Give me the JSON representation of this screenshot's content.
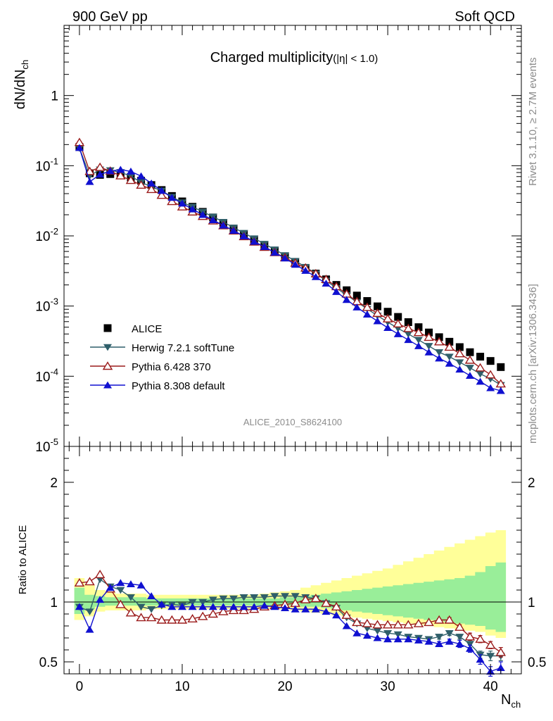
{
  "header": {
    "left": "900 GeV pp",
    "right": "Soft QCD"
  },
  "side_labels": {
    "rivet": "Rivet 3.1.10, ≥ 2.7M events",
    "mcplots": "mcplots.cern.ch [arXiv:1306.3436]"
  },
  "watermark": "ALICE_2010_S8624100",
  "chart_data": [
    {
      "type": "scatter",
      "title": "Charged multiplicity",
      "title_suffix": "(|η| < 1.0)",
      "ylabel": "dN/dN",
      "ylabel_sub": "ch",
      "yscale": "log",
      "xlim": [
        -1.5,
        43
      ],
      "ylim": [
        1e-05,
        10
      ],
      "x": [
        0,
        1,
        2,
        3,
        4,
        5,
        6,
        7,
        8,
        9,
        10,
        11,
        12,
        13,
        14,
        15,
        16,
        17,
        18,
        19,
        20,
        21,
        22,
        23,
        24,
        25,
        26,
        27,
        28,
        29,
        30,
        31,
        32,
        33,
        34,
        35,
        36,
        37,
        38,
        39,
        40,
        41
      ],
      "series": [
        {
          "name": "ALICE",
          "color": "#000000",
          "marker": "square",
          "values": [
            0.185,
            0.078,
            0.074,
            0.076,
            0.073,
            0.068,
            0.061,
            0.053,
            0.045,
            0.037,
            0.031,
            0.026,
            0.022,
            0.0183,
            0.0153,
            0.0127,
            0.0106,
            0.0088,
            0.0073,
            0.0061,
            0.0051,
            0.0042,
            0.0035,
            0.0029,
            0.0024,
            0.002,
            0.00168,
            0.00141,
            0.00118,
            0.00099,
            0.00083,
            0.0007,
            0.00059,
            0.0005,
            0.00042,
            0.00036,
            0.00031,
            0.00026,
            0.00022,
            0.00019,
            0.000165,
            0.000135
          ]
        },
        {
          "name": "Herwig 7.2.1 softTune",
          "color": "#2f5f6a",
          "marker": "triangle-down",
          "values": [
            0.178,
            0.072,
            0.088,
            0.086,
            0.081,
            0.071,
            0.058,
            0.05,
            0.044,
            0.036,
            0.03,
            0.026,
            0.022,
            0.0188,
            0.0158,
            0.0131,
            0.011,
            0.0092,
            0.0077,
            0.0064,
            0.0053,
            0.0044,
            0.0036,
            0.0029,
            0.0023,
            0.0018,
            0.00143,
            0.00114,
            0.00091,
            0.00073,
            0.00059,
            0.00048,
            0.0004,
            0.00033,
            0.00027,
            0.00022,
            0.00019,
            0.000158,
            0.000132,
            0.000108,
            9.2e-05,
            7.5e-05
          ]
        },
        {
          "name": "Pythia 6.428 370",
          "color": "#9b1b1b",
          "marker": "triangle-up-open",
          "values": [
            0.215,
            0.083,
            0.095,
            0.084,
            0.072,
            0.062,
            0.053,
            0.046,
            0.038,
            0.031,
            0.026,
            0.022,
            0.019,
            0.0164,
            0.014,
            0.0118,
            0.0098,
            0.0082,
            0.0069,
            0.0058,
            0.0049,
            0.0041,
            0.0035,
            0.0029,
            0.0024,
            0.0019,
            0.00149,
            0.00116,
            0.00096,
            0.00079,
            0.00066,
            0.00056,
            0.00048,
            0.00042,
            0.00036,
            0.00031,
            0.00026,
            0.00021,
            0.00017,
            0.000132,
            0.000105,
            7.8e-05
          ]
        },
        {
          "name": "Pythia 8.308 default",
          "color": "#1010d0",
          "marker": "triangle-up",
          "values": [
            0.18,
            0.059,
            0.075,
            0.084,
            0.088,
            0.083,
            0.071,
            0.056,
            0.044,
            0.035,
            0.029,
            0.024,
            0.02,
            0.0168,
            0.0141,
            0.0119,
            0.0099,
            0.0083,
            0.007,
            0.0058,
            0.0048,
            0.0039,
            0.0032,
            0.0026,
            0.0021,
            0.0016,
            0.00123,
            0.00096,
            0.00076,
            0.00061,
            0.00049,
            0.0004,
            0.00033,
            0.00027,
            0.00022,
            0.00018,
            0.000152,
            0.000125,
            0.000102,
            8.4e-05,
            6.8e-05,
            6.2e-05
          ]
        }
      ]
    },
    {
      "type": "line",
      "ylabel": "Ratio to ALICE",
      "xlabel": "N",
      "xlabel_sub": "ch",
      "xlim": [
        -1.5,
        43
      ],
      "ylim": [
        0.4,
        2.3
      ],
      "xticks": [
        0,
        10,
        20,
        30,
        40
      ],
      "yticks": [
        0.5,
        1,
        2
      ],
      "x": [
        0,
        1,
        2,
        3,
        4,
        5,
        6,
        7,
        8,
        9,
        10,
        11,
        12,
        13,
        14,
        15,
        16,
        17,
        18,
        19,
        20,
        21,
        22,
        23,
        24,
        25,
        26,
        27,
        28,
        29,
        30,
        31,
        32,
        33,
        34,
        35,
        36,
        37,
        38,
        39,
        40,
        41
      ],
      "bands": [
        {
          "name": "yellow",
          "color": "#ffff99",
          "lo": [
            0.85,
            0.88,
            0.92,
            0.93,
            0.93,
            0.93,
            0.93,
            0.94,
            0.94,
            0.94,
            0.94,
            0.94,
            0.94,
            0.94,
            0.94,
            0.94,
            0.94,
            0.94,
            0.94,
            0.94,
            0.94,
            0.93,
            0.92,
            0.91,
            0.9,
            0.89,
            0.88,
            0.87,
            0.86,
            0.85,
            0.84,
            0.83,
            0.82,
            0.81,
            0.8,
            0.79,
            0.78,
            0.77,
            0.76,
            0.75,
            0.72,
            0.7
          ],
          "hi": [
            1.2,
            1.14,
            1.1,
            1.08,
            1.07,
            1.07,
            1.07,
            1.06,
            1.06,
            1.06,
            1.06,
            1.06,
            1.06,
            1.06,
            1.06,
            1.06,
            1.06,
            1.06,
            1.07,
            1.08,
            1.09,
            1.1,
            1.12,
            1.14,
            1.16,
            1.18,
            1.2,
            1.22,
            1.24,
            1.26,
            1.28,
            1.31,
            1.34,
            1.37,
            1.4,
            1.43,
            1.46,
            1.49,
            1.52,
            1.55,
            1.58,
            1.6
          ]
        },
        {
          "name": "green",
          "color": "#99ee99",
          "lo": [
            0.9,
            0.94,
            0.96,
            0.97,
            0.97,
            0.97,
            0.97,
            0.97,
            0.97,
            0.97,
            0.97,
            0.97,
            0.97,
            0.97,
            0.97,
            0.97,
            0.97,
            0.97,
            0.97,
            0.97,
            0.97,
            0.97,
            0.96,
            0.96,
            0.95,
            0.94,
            0.93,
            0.92,
            0.91,
            0.9,
            0.89,
            0.88,
            0.87,
            0.86,
            0.85,
            0.84,
            0.83,
            0.82,
            0.81,
            0.8,
            0.77,
            0.75
          ],
          "hi": [
            1.12,
            1.06,
            1.05,
            1.04,
            1.04,
            1.04,
            1.04,
            1.03,
            1.03,
            1.03,
            1.03,
            1.03,
            1.03,
            1.03,
            1.03,
            1.03,
            1.03,
            1.03,
            1.03,
            1.03,
            1.04,
            1.04,
            1.05,
            1.06,
            1.07,
            1.08,
            1.09,
            1.1,
            1.11,
            1.12,
            1.13,
            1.14,
            1.15,
            1.16,
            1.17,
            1.18,
            1.19,
            1.2,
            1.22,
            1.25,
            1.3,
            1.33
          ]
        }
      ],
      "reference": 1,
      "series": [
        {
          "name": "Herwig 7.2.1 softTune",
          "color": "#2f5f6a",
          "marker": "triangle-down",
          "values": [
            0.96,
            0.92,
            1.19,
            1.13,
            1.1,
            1.04,
            0.96,
            0.94,
            0.97,
            0.98,
            0.97,
            1.0,
            1.0,
            1.02,
            1.03,
            1.03,
            1.04,
            1.04,
            1.04,
            1.05,
            1.05,
            1.05,
            1.04,
            1.03,
            0.99,
            0.95,
            0.87,
            0.82,
            0.78,
            0.76,
            0.74,
            0.73,
            0.71,
            0.7,
            0.69,
            0.71,
            0.74,
            0.71,
            0.65,
            0.56,
            0.55,
            0.55
          ],
          "err": [
            0,
            0,
            0,
            0,
            0,
            0,
            0,
            0,
            0,
            0,
            0,
            0,
            0,
            0,
            0,
            0,
            0,
            0,
            0,
            0,
            0,
            0,
            0,
            0,
            0,
            0,
            0,
            0,
            0,
            0,
            0,
            0,
            0,
            0,
            0,
            0.02,
            0.02,
            0.02,
            0.03,
            0.03,
            0.04,
            0.04
          ]
        },
        {
          "name": "Pythia 6.428 370",
          "color": "#9b1b1b",
          "marker": "triangle-up-open",
          "values": [
            1.16,
            1.17,
            1.23,
            1.11,
            0.98,
            0.91,
            0.87,
            0.87,
            0.85,
            0.85,
            0.85,
            0.86,
            0.88,
            0.9,
            0.92,
            0.93,
            0.93,
            0.94,
            0.96,
            0.97,
            0.98,
            0.99,
            1.02,
            1.03,
            0.99,
            0.96,
            0.89,
            0.83,
            0.82,
            0.81,
            0.81,
            0.81,
            0.81,
            0.82,
            0.83,
            0.85,
            0.85,
            0.79,
            0.71,
            0.69,
            0.64,
            0.58
          ],
          "err": [
            0,
            0,
            0,
            0,
            0,
            0,
            0,
            0,
            0,
            0,
            0,
            0,
            0,
            0,
            0,
            0,
            0,
            0,
            0,
            0,
            0,
            0,
            0,
            0,
            0,
            0,
            0,
            0,
            0,
            0,
            0,
            0,
            0,
            0,
            0,
            0.01,
            0.02,
            0.02,
            0.03,
            0.03,
            0.03,
            0.04
          ]
        },
        {
          "name": "Pythia 8.308 default",
          "color": "#1010d0",
          "marker": "triangle-up",
          "values": [
            0.96,
            0.77,
            1.02,
            1.12,
            1.16,
            1.15,
            1.14,
            1.05,
            0.98,
            0.96,
            0.96,
            0.96,
            0.96,
            0.96,
            0.96,
            0.96,
            0.96,
            0.96,
            0.97,
            0.96,
            0.95,
            0.94,
            0.94,
            0.94,
            0.92,
            0.89,
            0.8,
            0.74,
            0.72,
            0.7,
            0.69,
            0.69,
            0.69,
            0.68,
            0.67,
            0.65,
            0.67,
            0.65,
            0.61,
            0.52,
            0.42,
            0.45
          ],
          "err": [
            0,
            0,
            0,
            0,
            0,
            0,
            0,
            0,
            0,
            0,
            0,
            0,
            0,
            0,
            0,
            0,
            0,
            0,
            0,
            0,
            0,
            0,
            0,
            0,
            0,
            0,
            0,
            0,
            0,
            0,
            0,
            0,
            0,
            0,
            0,
            0.02,
            0.02,
            0.03,
            0.03,
            0.04,
            0.04,
            0.05
          ]
        }
      ]
    }
  ],
  "legend": {
    "position": "lower-left"
  }
}
